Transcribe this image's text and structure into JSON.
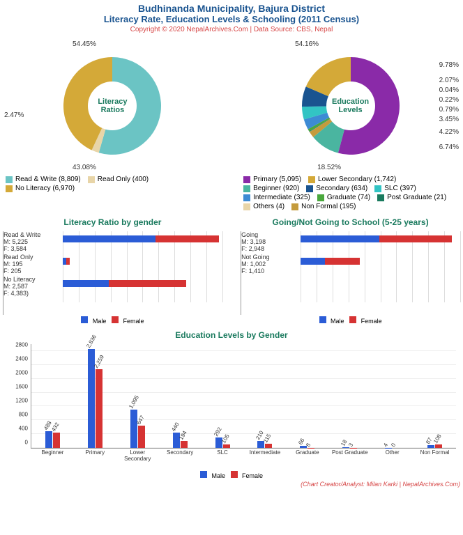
{
  "header": {
    "title_main": "Budhinanda Municipality, Bajura District",
    "title_sub": "Literacy Rate, Education Levels & Schooling (2011 Census)",
    "copyright": "Copyright © 2020 NepalArchives.Com | Data Source: CBS, Nepal"
  },
  "colors": {
    "title": "#1a5490",
    "subtitle_teal": "#1a7a5e",
    "copyright_red": "#d64545",
    "male": "#2b5cd6",
    "female": "#d63333"
  },
  "donut1": {
    "center_label": "Literacy\nRatios",
    "slices": [
      {
        "label": "Read & Write (8,809)",
        "pct": 54.45,
        "color": "#6bc4c4",
        "label_text": "54.45%"
      },
      {
        "label": "Read Only (400)",
        "pct": 2.47,
        "color": "#e8d5a8",
        "label_text": "2.47%"
      },
      {
        "label": "No Literacy (6,970)",
        "pct": 43.08,
        "color": "#d4a938",
        "label_text": "43.08%"
      }
    ]
  },
  "donut2": {
    "center_label": "Education\nLevels",
    "slices": [
      {
        "label": "Primary (5,095)",
        "pct": 54.16,
        "color": "#8a2aa8",
        "label_text": "54.16%"
      },
      {
        "label": "Beginner (920)",
        "pct": 9.78,
        "color": "#4ab5a0",
        "label_text": "9.78%"
      },
      {
        "label": "Non Formal (195)",
        "pct": 2.07,
        "color": "#c49b3d",
        "label_text": "2.07%"
      },
      {
        "label": "Others (4)",
        "pct": 0.04,
        "color": "#e8d5a8",
        "label_text": "0.04%"
      },
      {
        "label": "Post Graduate (21)",
        "pct": 0.22,
        "color": "#1a7a5e",
        "label_text": "0.22%"
      },
      {
        "label": "Graduate (74)",
        "pct": 0.79,
        "color": "#4aa83d",
        "label_text": "0.79%"
      },
      {
        "label": "Intermediate (325)",
        "pct": 3.45,
        "color": "#3d8bd4",
        "label_text": "3.45%"
      },
      {
        "label": "SLC (397)",
        "pct": 4.22,
        "color": "#32c4c4",
        "label_text": "4.22%"
      },
      {
        "label": "Secondary (634)",
        "pct": 6.74,
        "color": "#1a5490",
        "label_text": "6.74%"
      },
      {
        "label": "Lower Secondary (1,742)",
        "pct": 18.52,
        "color": "#d4a938",
        "label_text": "18.52%"
      }
    ],
    "legend_order": [
      "Primary (5,095)",
      "Lower Secondary (1,742)",
      "Beginner (920)",
      "Secondary (634)",
      "SLC (397)",
      "Intermediate (325)",
      "Graduate (74)",
      "Post Graduate (21)",
      "Others (4)",
      "Non Formal (195)"
    ]
  },
  "hbar1": {
    "title": "Literacy Ratio by gender",
    "max": 9000,
    "rows": [
      {
        "name": "Read & Write",
        "m": 5225,
        "f": 3584,
        "label": "Read & Write\nM: 5,225\nF: 3,584"
      },
      {
        "name": "Read Only",
        "m": 195,
        "f": 205,
        "label": "Read Only\nM: 195\nF: 205"
      },
      {
        "name": "No Literacy",
        "m": 2587,
        "f": 4383,
        "label": "No Literacy\nM: 2,587\nF: 4,383)"
      }
    ],
    "legend": {
      "male": "Male",
      "female": "Female"
    }
  },
  "hbar2": {
    "title": "Going/Not Going to School (5-25 years)",
    "max": 6500,
    "rows": [
      {
        "name": "Going",
        "m": 3198,
        "f": 2948,
        "label": "Going\nM: 3,198\nF: 2,948"
      },
      {
        "name": "Not Going",
        "m": 1002,
        "f": 1410,
        "label": "Not Going\nM: 1,002\nF: 1,410"
      }
    ],
    "legend": {
      "male": "Male",
      "female": "Female"
    }
  },
  "vbar": {
    "title": "Education Levels by Gender",
    "ymax": 3000,
    "yticks": [
      0,
      400,
      800,
      1200,
      1600,
      2000,
      2400,
      2800
    ],
    "categories": [
      {
        "name": "Beginner",
        "m": 488,
        "f": 432
      },
      {
        "name": "Primary",
        "m": 2836,
        "f": 2259
      },
      {
        "name": "Lower Secondary",
        "m": 1095,
        "f": 647
      },
      {
        "name": "Secondary",
        "m": 440,
        "f": 194
      },
      {
        "name": "SLC",
        "m": 292,
        "f": 105
      },
      {
        "name": "Intermediate",
        "m": 210,
        "f": 115
      },
      {
        "name": "Graduate",
        "m": 66,
        "f": 8
      },
      {
        "name": "Post Graduate",
        "m": 18,
        "f": 3
      },
      {
        "name": "Other",
        "m": 4,
        "f": 0
      },
      {
        "name": "Non Formal",
        "m": 87,
        "f": 108
      }
    ],
    "legend": {
      "male": "Male",
      "female": "Female"
    }
  },
  "credit": "(Chart Creator/Analyst: Milan Karki | NepalArchives.Com)"
}
